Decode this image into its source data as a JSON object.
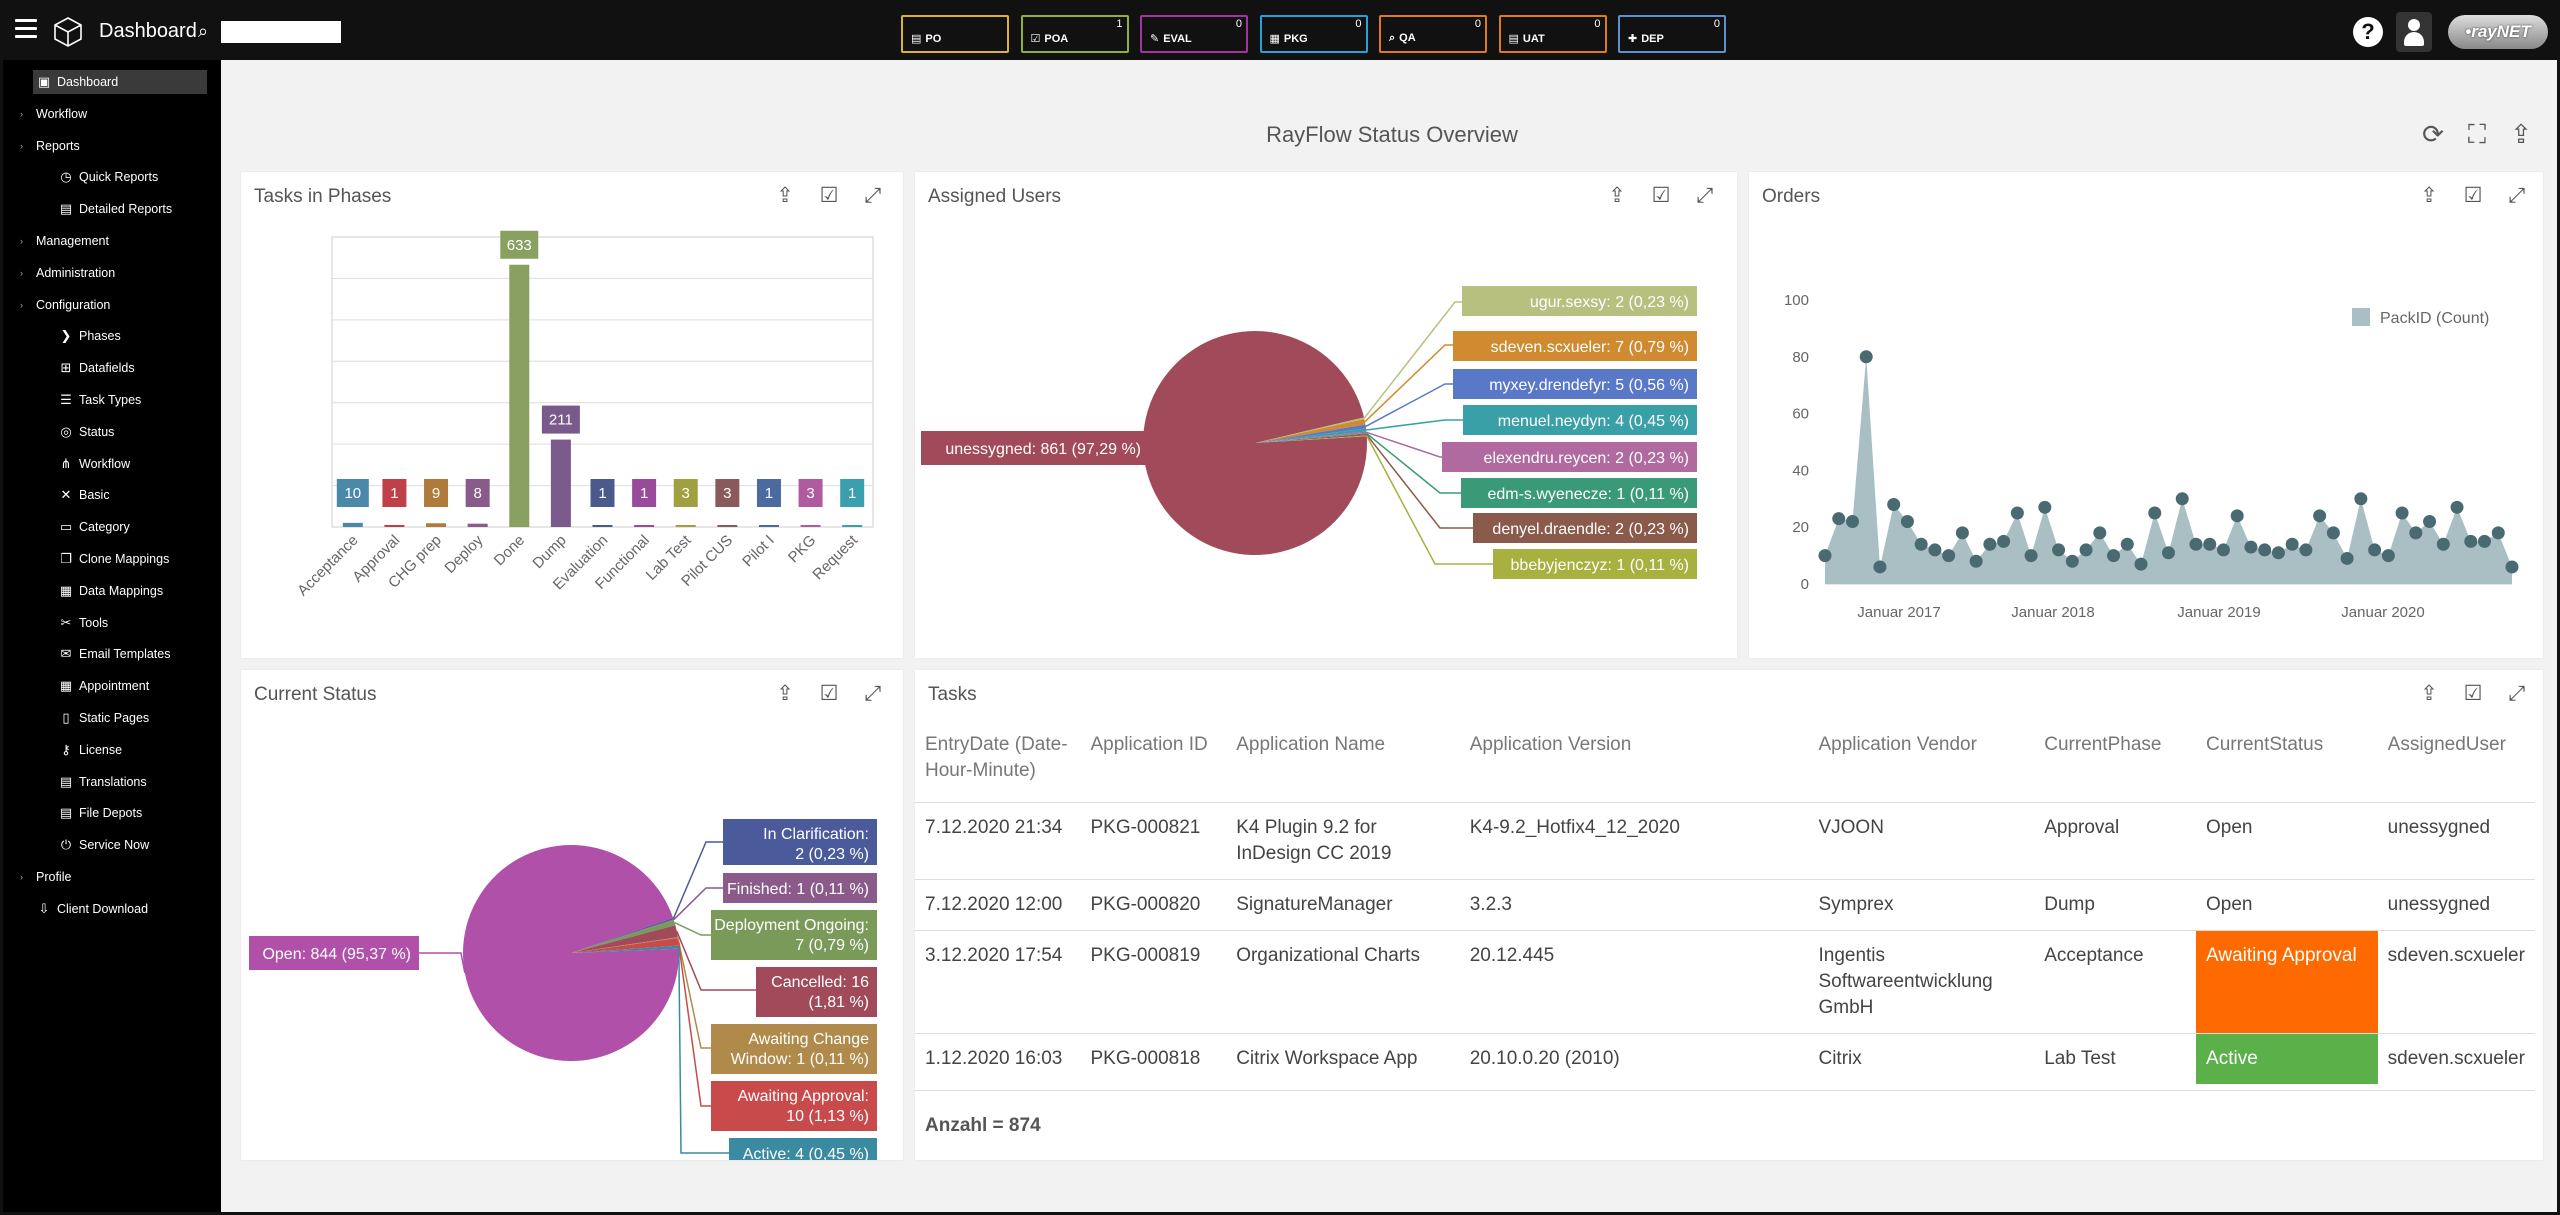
{
  "header": {
    "app_title": "Dashboard",
    "search_placeholder": "",
    "phases": [
      {
        "label": "PO",
        "count": "",
        "color": "#d9b23a",
        "icon": "doc-icon"
      },
      {
        "label": "POA",
        "count": "1",
        "color": "#8fb040",
        "icon": "doc-check-icon"
      },
      {
        "label": "EVAL",
        "count": "0",
        "color": "#a035a0",
        "icon": "dropper-icon"
      },
      {
        "label": "PKG",
        "count": "0",
        "color": "#2f9ed8",
        "icon": "package-icon"
      },
      {
        "label": "QA",
        "count": "0",
        "color": "#e07b1a",
        "icon": "search-icon"
      },
      {
        "label": "UAT",
        "count": "0",
        "color": "#e07b1a",
        "icon": "doc-icon"
      },
      {
        "label": "DEP",
        "count": "0",
        "color": "#5f8fd0",
        "icon": "plus-icon"
      }
    ],
    "logo_text": "•rayNET"
  },
  "sidebar": {
    "items": [
      {
        "label": "Dashboard",
        "level": 1,
        "icon": "dashboard-icon",
        "active": true
      },
      {
        "label": "Workflow",
        "level": 0
      },
      {
        "label": "Reports",
        "level": 0,
        "expanded": true
      },
      {
        "label": "Quick Reports",
        "level": 2,
        "icon": "clock-icon"
      },
      {
        "label": "Detailed Reports",
        "level": 2,
        "icon": "doc-icon"
      },
      {
        "label": "Management",
        "level": 0
      },
      {
        "label": "Administration",
        "level": 0
      },
      {
        "label": "Configuration",
        "level": 0,
        "expanded": true
      },
      {
        "label": "Phases",
        "level": 2,
        "icon": "phases-icon"
      },
      {
        "label": "Datafields",
        "level": 2,
        "icon": "datafields-icon"
      },
      {
        "label": "Task Types",
        "level": 2,
        "icon": "task-types-icon"
      },
      {
        "label": "Status",
        "level": 2,
        "icon": "status-icon"
      },
      {
        "label": "Workflow",
        "level": 2,
        "icon": "workflow-icon"
      },
      {
        "label": "Basic",
        "level": 2,
        "icon": "basic-icon"
      },
      {
        "label": "Category",
        "level": 2,
        "icon": "category-icon"
      },
      {
        "label": "Clone Mappings",
        "level": 2,
        "icon": "clone-icon"
      },
      {
        "label": "Data Mappings",
        "level": 2,
        "icon": "data-mappings-icon"
      },
      {
        "label": "Tools",
        "level": 2,
        "icon": "tools-icon"
      },
      {
        "label": "Email Templates",
        "level": 2,
        "icon": "email-icon"
      },
      {
        "label": "Appointment",
        "level": 2,
        "icon": "calendar-icon"
      },
      {
        "label": "Static Pages",
        "level": 2,
        "icon": "page-icon"
      },
      {
        "label": "License",
        "level": 2,
        "icon": "key-icon"
      },
      {
        "label": "Translations",
        "level": 2,
        "icon": "translate-icon"
      },
      {
        "label": "File Depots",
        "level": 2,
        "icon": "folder-icon"
      },
      {
        "label": "Service Now",
        "level": 2,
        "icon": "power-icon"
      },
      {
        "label": "Profile",
        "level": 0
      },
      {
        "label": "Client Download",
        "level": 1,
        "icon": "download-icon"
      }
    ]
  },
  "main": {
    "title": "RayFlow Status Overview",
    "panels": {
      "tasks_in_phases": "Tasks in Phases",
      "assigned_users": "Assigned Users",
      "orders": "Orders",
      "current_status": "Current Status",
      "tasks": "Tasks"
    }
  },
  "chart_data": [
    {
      "type": "bar",
      "id": "tasks-in-phases",
      "title": "Tasks in Phases",
      "categories": [
        "Acceptance",
        "Approval",
        "CHG prep",
        "Deploy",
        "Done",
        "Dump",
        "Evaluation",
        "Functional",
        "Lab Test",
        "Pilot CUS",
        "Pilot I",
        "PKG",
        "Request"
      ],
      "values": [
        10,
        1,
        9,
        8,
        633,
        211,
        1,
        1,
        3,
        3,
        1,
        3,
        1
      ],
      "colors": [
        "#4a8aa8",
        "#c0404a",
        "#b07a3a",
        "#8a5a8a",
        "#8aa060",
        "#7a5a8a",
        "#4a5a8a",
        "#9a4a9a",
        "#a0a040",
        "#8a5a5a",
        "#4a6aa0",
        "#b05aa0",
        "#3aa0b0"
      ],
      "ylim": [
        0,
        700
      ],
      "grid": true
    },
    {
      "type": "pie",
      "id": "assigned-users",
      "title": "Assigned Users",
      "slices": [
        {
          "label": "unessygned: 861 (97,29 %)",
          "value": 861,
          "color": "#a04a5a"
        },
        {
          "label": "ugur.sexsy: 2 (0,23 %)",
          "value": 2,
          "color": "#b8c080"
        },
        {
          "label": "sdeven.scxueler: 7 (0,79 %)",
          "value": 7,
          "color": "#d08a30"
        },
        {
          "label": "myxey.drendefyr: 5 (0,56 %)",
          "value": 5,
          "color": "#5a78c8"
        },
        {
          "label": "menuel.neydyn: 4 (0,45 %)",
          "value": 4,
          "color": "#3aa0a8"
        },
        {
          "label": "elexendru.reycen: 2 (0,23 %)",
          "value": 2,
          "color": "#b06aa0"
        },
        {
          "label": "edm-s.wyenecze: 1 (0,11 %)",
          "value": 1,
          "color": "#3a9a78"
        },
        {
          "label": "denyel.draendle: 2 (0,23 %)",
          "value": 2,
          "color": "#8a5a4a"
        },
        {
          "label": "bbebyjenczyz: 1 (0,11 %)",
          "value": 1,
          "color": "#a8b040"
        }
      ]
    },
    {
      "type": "area",
      "id": "orders",
      "title": "Orders",
      "legend": "PackID (Count)",
      "legend_position": "top-right",
      "x_tick_labels": [
        "Januar 2017",
        "Januar 2018",
        "Januar 2019",
        "Januar 2020"
      ],
      "y_tick_labels": [
        "0",
        "20",
        "40",
        "60",
        "80",
        "100"
      ],
      "ylim": [
        0,
        100
      ],
      "series": [
        {
          "color": "#a9bfc4",
          "values": [
            10,
            23,
            22,
            80,
            6,
            28,
            22,
            14,
            12,
            10,
            18,
            8,
            14,
            15,
            25,
            10,
            27,
            12,
            8,
            12,
            18,
            10,
            14,
            7,
            25,
            11,
            30,
            14,
            14,
            12,
            24,
            13,
            12,
            11,
            14,
            12,
            24,
            18,
            9,
            30,
            12,
            10,
            25,
            18,
            22,
            14,
            27,
            15,
            15,
            18,
            6
          ]
        }
      ]
    },
    {
      "type": "pie",
      "id": "current-status",
      "title": "Current Status",
      "slices": [
        {
          "label": "Open: 844 (95,37 %)",
          "value": 844,
          "color": "#b050a8"
        },
        {
          "label": "In Clarification: 2 (0,23 %)",
          "value": 2,
          "color": "#4a5a9a"
        },
        {
          "label": "Finished: 1 (0,11 %)",
          "value": 1,
          "color": "#8a5a8a"
        },
        {
          "label": "Deployment Ongoing: 7 (0,79 %)",
          "value": 7,
          "color": "#7a9a5a"
        },
        {
          "label": "Cancelled: 16 (1,81 %)",
          "value": 16,
          "color": "#a04a5a"
        },
        {
          "label": "Awaiting Change Window: 1 (0,11 %)",
          "value": 1,
          "color": "#b08a4a"
        },
        {
          "label": "Awaiting Approval: 10 (1,13 %)",
          "value": 10,
          "color": "#c84a4a"
        },
        {
          "label": "Active: 4 (0,45 %)",
          "value": 4,
          "color": "#3a8aa0"
        }
      ]
    }
  ],
  "tasks_table": {
    "columns": [
      "EntryDate (Date-Hour-Minute)",
      "Application ID",
      "Application Name",
      "Application Version",
      "Application Vendor",
      "CurrentPhase",
      "CurrentStatus",
      "AssignedUser"
    ],
    "rows": [
      [
        "7.12.2020 21:34",
        "PKG-000821",
        "K4 Plugin 9.2 for InDesign CC 2019",
        "K4-9.2_Hotfix4_12_2020",
        "VJOON",
        "Approval",
        "Open",
        "unessygned"
      ],
      [
        "7.12.2020 12:00",
        "PKG-000820",
        "SignatureManager",
        "3.2.3",
        "Symprex",
        "Dump",
        "Open",
        "unessygned"
      ],
      [
        "3.12.2020 17:54",
        "PKG-000819",
        "Organizational Charts",
        "20.12.445",
        "Ingentis Softwareentwicklung GmbH",
        "Acceptance",
        "Awaiting Approval",
        "sdeven.scxueler"
      ],
      [
        "1.12.2020 16:03",
        "PKG-000818",
        "Citrix Workspace App",
        "20.10.0.20 (2010)",
        "Citrix",
        "Lab Test",
        "Active",
        "sdeven.scxueler"
      ]
    ],
    "status_colors": {
      "Awaiting Approval": "#ff6a00",
      "Active": "#5cb04a"
    },
    "footer": "Anzahl = 874"
  }
}
